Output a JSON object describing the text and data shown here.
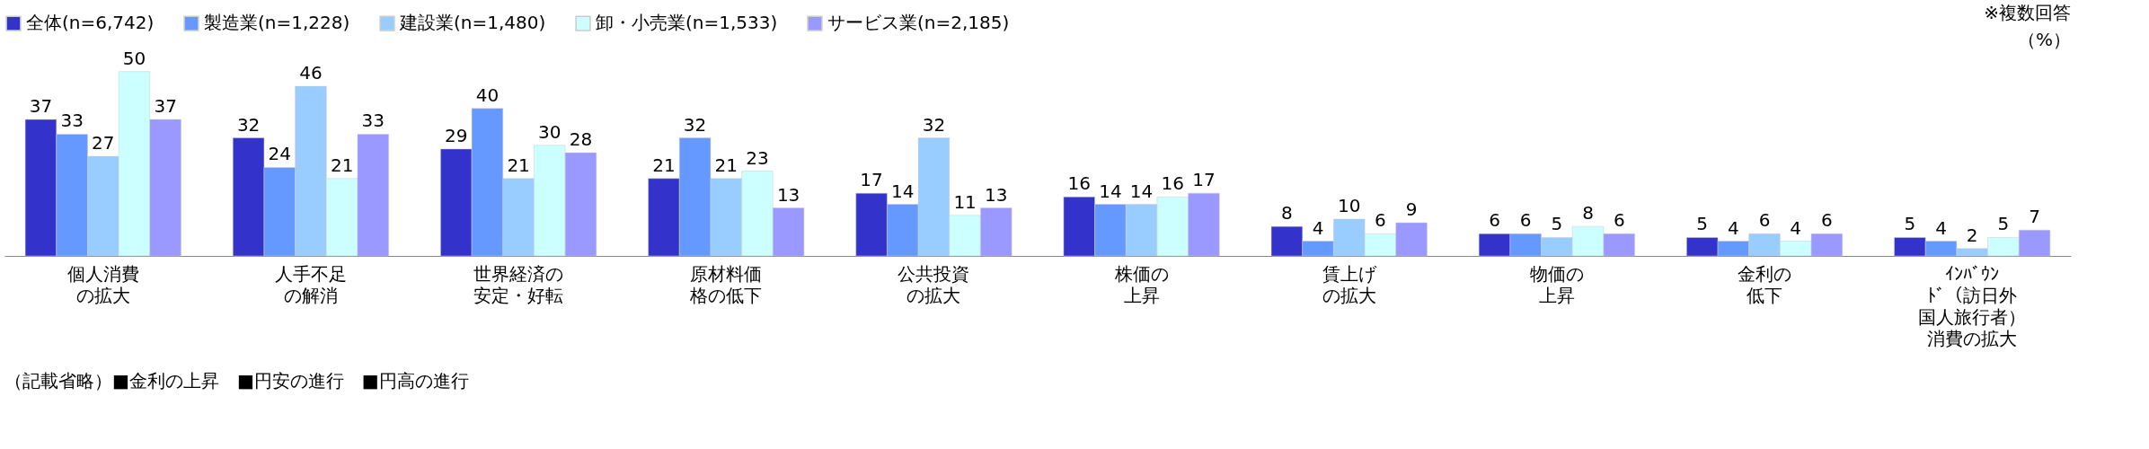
{
  "chart_data": {
    "type": "bar",
    "categories": [
      "個人消費の拡大",
      "人手不足の解消",
      "世界経済の安定・好転",
      "原材料価格の低下",
      "公共投資の拡大",
      "株価の上昇",
      "賃上げの拡大",
      "物価の上昇",
      "金利の低下",
      "ｲﾝﾊﾞｳﾝﾄﾞ（訪日外国人旅行者）消費の拡大"
    ],
    "series": [
      {
        "name": "全体(n=6,742)",
        "color": "#3333cc",
        "values": [
          37,
          32,
          29,
          21,
          17,
          16,
          8,
          6,
          5,
          5
        ]
      },
      {
        "name": "製造業(n=1,228)",
        "color": "#6699ff",
        "values": [
          33,
          24,
          40,
          32,
          14,
          14,
          4,
          6,
          4,
          4
        ]
      },
      {
        "name": "建設業(n=1,480)",
        "color": "#99ccff",
        "values": [
          27,
          46,
          21,
          21,
          32,
          14,
          10,
          5,
          6,
          2
        ]
      },
      {
        "name": "卸・小売業(n=1,533)",
        "color": "#ccffff",
        "values": [
          50,
          21,
          30,
          23,
          11,
          16,
          6,
          8,
          4,
          5
        ]
      },
      {
        "name": "サービス業(n=2,185)",
        "color": "#9999ff",
        "values": [
          37,
          33,
          28,
          13,
          13,
          17,
          9,
          6,
          6,
          7
        ]
      }
    ],
    "data_labels": true,
    "legend": "top",
    "grid": false,
    "annotations": [
      "※複数回答",
      "（%）",
      "（記載省略）■金利の上昇　■円安の進行　■円高の進行"
    ]
  }
}
